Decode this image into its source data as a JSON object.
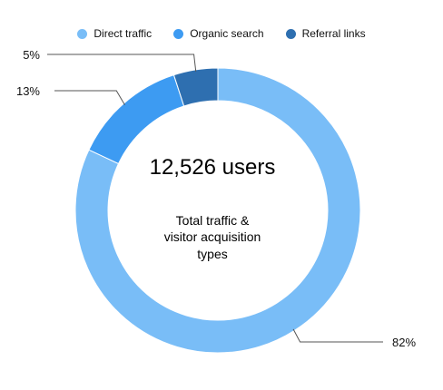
{
  "chart_data": {
    "type": "pie",
    "style": "donut",
    "legend_position": "top",
    "center_value": "12,526 users",
    "center_caption": [
      "Total traffic &",
      "visitor acquisition",
      "types"
    ],
    "slices": [
      {
        "name": "Direct traffic",
        "value": 82,
        "label": "82%",
        "color": "#79bdf7"
      },
      {
        "name": "Organic search",
        "value": 13,
        "label": "13%",
        "color": "#3d9bf2"
      },
      {
        "name": "Referral links",
        "value": 5,
        "label": "5%",
        "color": "#2e6fb0"
      }
    ]
  }
}
